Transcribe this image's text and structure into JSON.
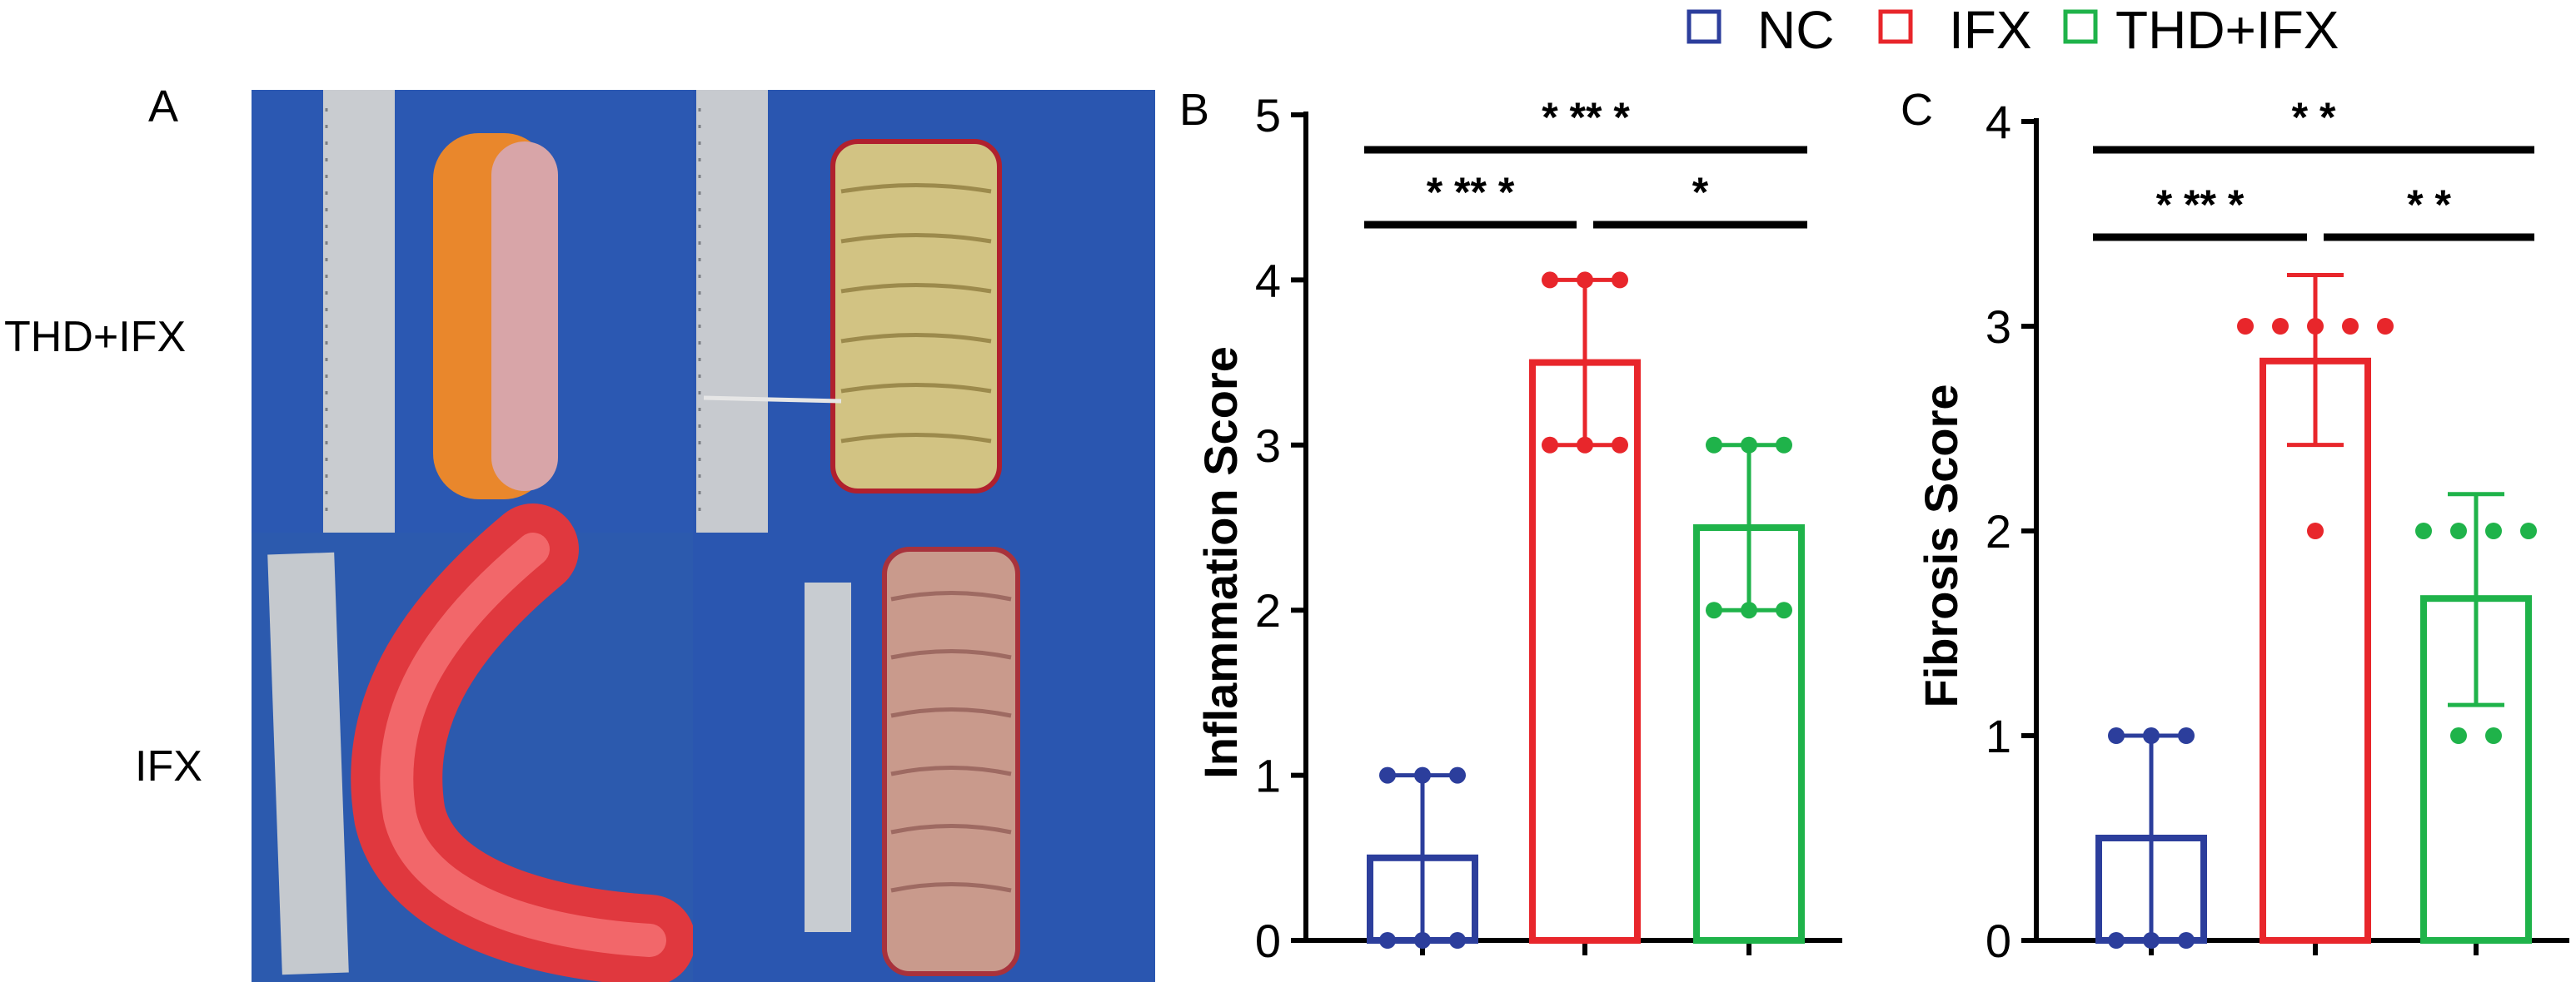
{
  "legend": {
    "items": [
      {
        "label": "NC",
        "color": "#2c3e9c"
      },
      {
        "label": "IFX",
        "color": "#e8262b"
      },
      {
        "label": "THD+IFX",
        "color": "#1fb34a"
      }
    ]
  },
  "panel_a": {
    "letter": "A",
    "row_labels": [
      "THD+IFX",
      "IFX"
    ],
    "photo_bg": "#2a56b0"
  },
  "panel_b": {
    "letter": "B"
  },
  "panel_c": {
    "letter": "C"
  },
  "chart_data": [
    {
      "type": "bar",
      "id": "B",
      "title": "",
      "xlabel": "",
      "ylabel": "Inflammation Score",
      "ylim": [
        0,
        5
      ],
      "yticks": [
        0,
        1,
        2,
        3,
        4,
        5
      ],
      "categories": [
        "NC",
        "IFX",
        "THD+IFX"
      ],
      "colors": [
        "#2c3e9c",
        "#e8262b",
        "#1fb34a"
      ],
      "values": [
        0.5,
        3.5,
        2.5
      ],
      "error": [
        [
          0,
          1.0
        ],
        [
          3.0,
          4.0
        ],
        [
          2.0,
          3.0
        ]
      ],
      "points": [
        [
          1,
          1,
          0,
          0,
          0,
          1
        ],
        [
          4,
          4,
          3,
          3,
          3,
          4
        ],
        [
          3,
          3,
          2,
          2,
          2,
          3
        ]
      ],
      "significance": [
        {
          "from": 0,
          "to": 2,
          "label": "* ** *",
          "level": 2
        },
        {
          "from": 0,
          "to": 1,
          "label": "* ** *",
          "level": 1
        },
        {
          "from": 1,
          "to": 2,
          "label": "*",
          "level": 1
        }
      ]
    },
    {
      "type": "bar",
      "id": "C",
      "title": "",
      "xlabel": "",
      "ylabel": "Fibrosis Score",
      "ylim": [
        0,
        4
      ],
      "yticks": [
        0,
        1,
        2,
        3,
        4
      ],
      "categories": [
        "NC",
        "IFX",
        "THD+IFX"
      ],
      "colors": [
        "#2c3e9c",
        "#e8262b",
        "#1fb34a"
      ],
      "values": [
        0.5,
        2.83,
        1.67
      ],
      "error": [
        [
          0,
          1.0
        ],
        [
          2.42,
          3.25
        ],
        [
          1.15,
          2.18
        ]
      ],
      "points": [
        [
          1,
          1,
          0,
          0,
          0,
          1
        ],
        [
          3,
          3,
          3,
          3,
          3,
          2
        ],
        [
          2,
          2,
          2,
          2,
          1,
          1
        ]
      ],
      "significance": [
        {
          "from": 0,
          "to": 2,
          "label": "* *",
          "level": 2
        },
        {
          "from": 0,
          "to": 1,
          "label": "* ** *",
          "level": 1
        },
        {
          "from": 1,
          "to": 2,
          "label": "* *",
          "level": 1
        }
      ]
    }
  ]
}
